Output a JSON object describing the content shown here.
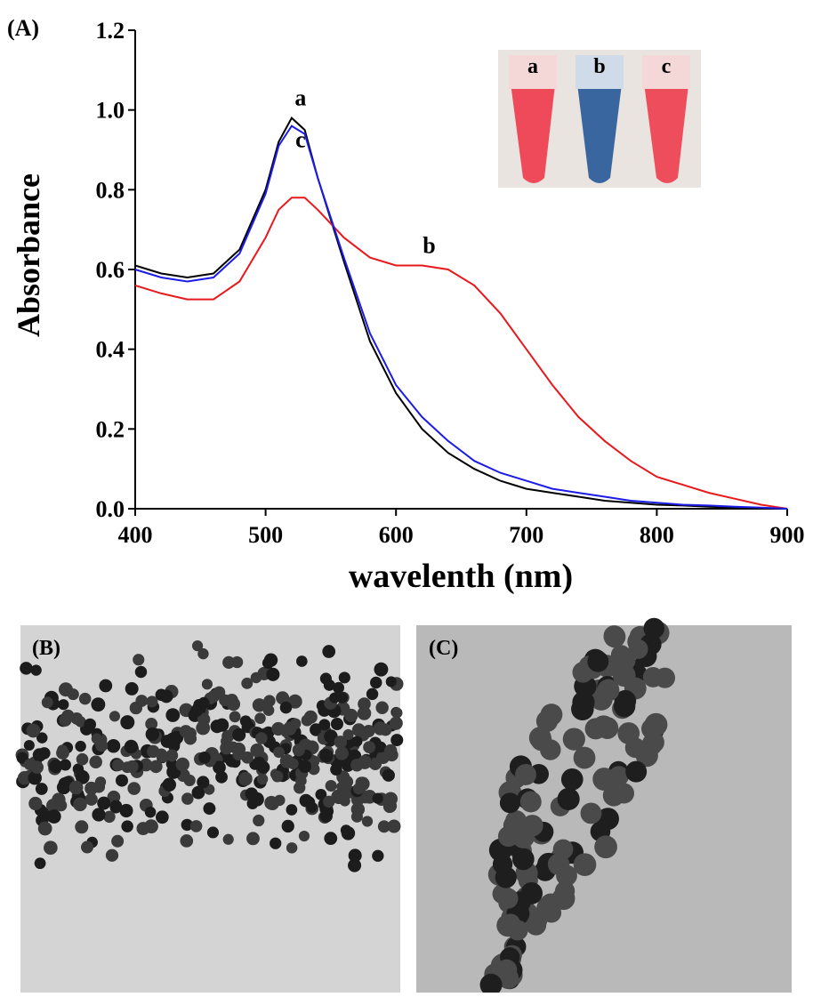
{
  "chart_data": {
    "type": "line",
    "panel_label": "(A)",
    "x_label": "wavelenth (nm)",
    "y_label": "Absorbance",
    "x": [
      400,
      420,
      440,
      460,
      480,
      500,
      510,
      520,
      530,
      540,
      560,
      580,
      600,
      620,
      640,
      660,
      680,
      700,
      720,
      740,
      760,
      780,
      800,
      820,
      840,
      860,
      880,
      900
    ],
    "series": [
      {
        "name": "a",
        "color": "#000000",
        "values": [
          0.61,
          0.59,
          0.58,
          0.59,
          0.65,
          0.8,
          0.92,
          0.98,
          0.95,
          0.83,
          0.62,
          0.42,
          0.29,
          0.2,
          0.14,
          0.1,
          0.07,
          0.05,
          0.04,
          0.03,
          0.02,
          0.015,
          0.01,
          0.008,
          0.005,
          0.003,
          0.002,
          0
        ]
      },
      {
        "name": "b",
        "color": "#e8191c",
        "values": [
          0.56,
          0.54,
          0.525,
          0.525,
          0.57,
          0.68,
          0.75,
          0.78,
          0.78,
          0.75,
          0.68,
          0.63,
          0.61,
          0.61,
          0.6,
          0.56,
          0.49,
          0.4,
          0.31,
          0.23,
          0.17,
          0.12,
          0.08,
          0.06,
          0.04,
          0.025,
          0.01,
          0
        ]
      },
      {
        "name": "c",
        "color": "#1c1ce8",
        "values": [
          0.6,
          0.58,
          0.57,
          0.58,
          0.64,
          0.79,
          0.91,
          0.96,
          0.94,
          0.83,
          0.63,
          0.44,
          0.31,
          0.23,
          0.17,
          0.12,
          0.09,
          0.07,
          0.05,
          0.04,
          0.03,
          0.02,
          0.015,
          0.01,
          0.008,
          0.005,
          0.003,
          0
        ]
      }
    ],
    "xlim": [
      400,
      900
    ],
    "xticks": [
      400,
      500,
      600,
      700,
      800,
      900
    ],
    "ylim": [
      0,
      1.2
    ],
    "yticks": [
      {
        "value": 0,
        "label": "0.0"
      },
      0.2,
      0.4,
      0.6,
      0.8,
      {
        "value": 1,
        "label": "1.0"
      },
      1.2
    ],
    "inset_labels": [
      "a",
      "b",
      "c"
    ]
  },
  "panels": [
    {
      "label": "(B)"
    },
    {
      "label": "(C)"
    }
  ]
}
